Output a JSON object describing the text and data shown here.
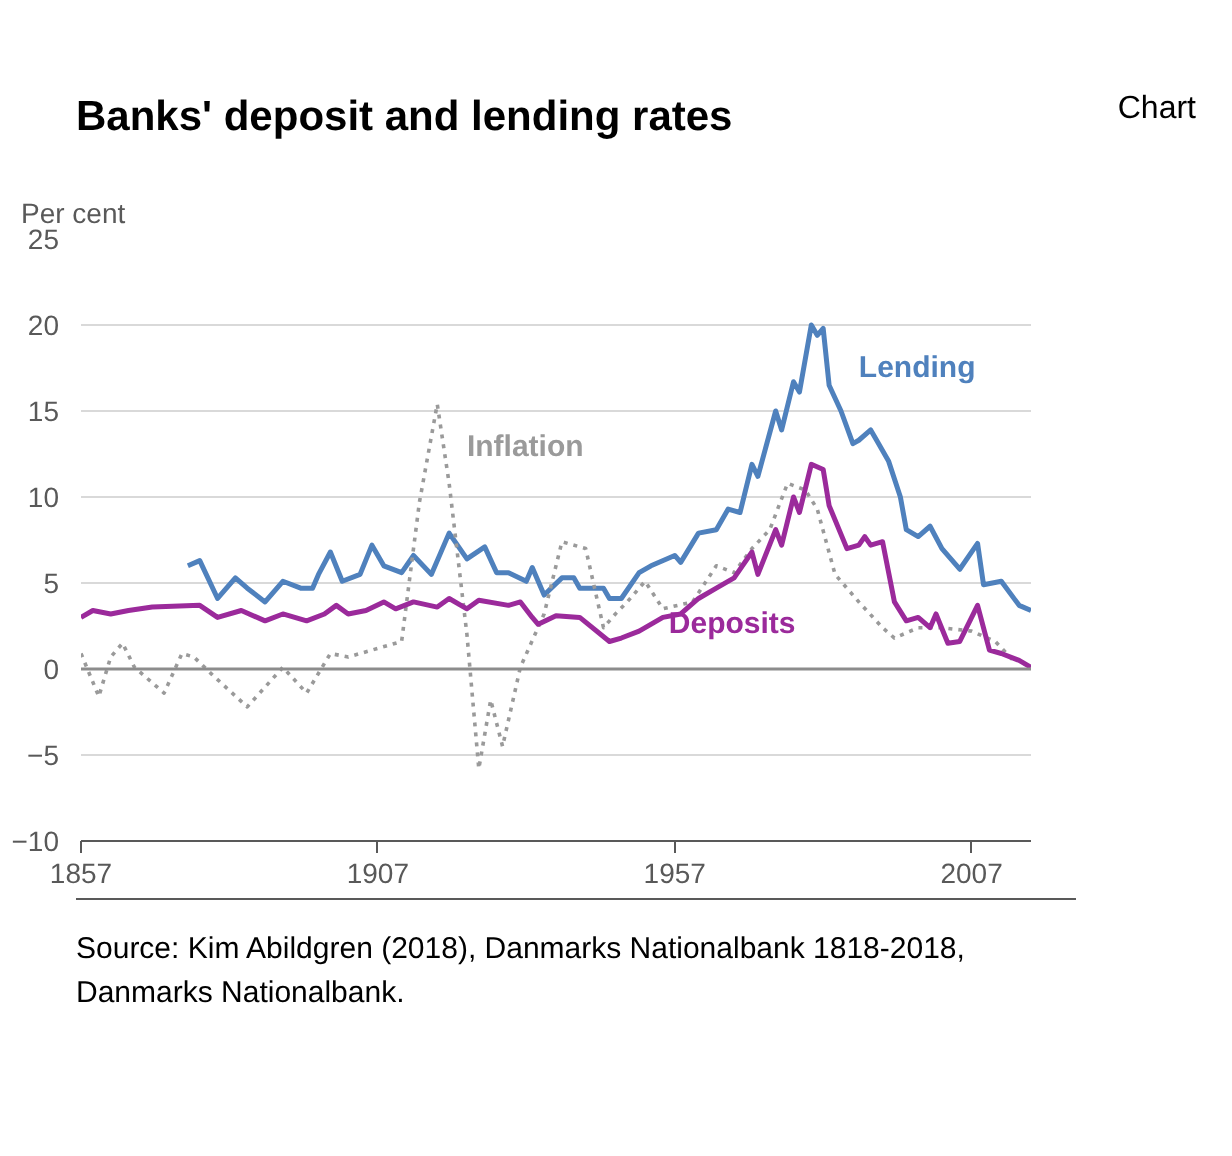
{
  "chart_data": {
    "type": "line",
    "title": "Banks' deposit and lending rates",
    "ylabel": "Per cent",
    "annotations": [
      "Chart",
      "Source:  Kim Abildgren (2018), Danmarks Nationalbank 1818-2018, Danmarks Nationalbank."
    ],
    "xlim": [
      1857,
      2017
    ],
    "xticks": [
      1857,
      1907,
      1957,
      2007
    ],
    "ylim": [
      -10,
      25
    ],
    "yticks": [
      -10,
      -5,
      0,
      5,
      10,
      15,
      20,
      25
    ],
    "grid": "y",
    "marker": "none",
    "series": [
      {
        "name": "Lending",
        "color": "#4f81bd",
        "line_style": "solid",
        "x": [
          1875,
          1877,
          1880,
          1883,
          1885,
          1888,
          1891,
          1894,
          1896,
          1897,
          1899,
          1901,
          1904,
          1906,
          1908,
          1911,
          1913,
          1916,
          1919,
          1922,
          1925,
          1927,
          1929,
          1932,
          1933,
          1935,
          1938,
          1940,
          1941,
          1945,
          1946,
          1948,
          1951,
          1953,
          1957,
          1958,
          1961,
          1964,
          1966,
          1968,
          1970,
          1971,
          1974,
          1975,
          1977,
          1978,
          1980,
          1981,
          1982,
          1983,
          1985,
          1987,
          1988,
          1990,
          1991,
          1993,
          1995,
          1996,
          1998,
          2000,
          2002,
          2005,
          2008,
          2009,
          2012,
          2015,
          2017
        ],
        "values": [
          6.0,
          6.3,
          4.1,
          5.3,
          4.7,
          3.9,
          5.1,
          4.7,
          4.7,
          5.5,
          6.8,
          5.1,
          5.5,
          7.2,
          6.0,
          5.6,
          6.6,
          5.5,
          7.9,
          6.4,
          7.1,
          5.6,
          5.6,
          5.1,
          5.9,
          4.3,
          5.3,
          5.3,
          4.7,
          4.7,
          4.1,
          4.1,
          5.6,
          6.0,
          6.6,
          6.2,
          7.9,
          8.1,
          9.3,
          9.1,
          11.9,
          11.2,
          15.0,
          13.9,
          16.7,
          16.1,
          20.0,
          19.4,
          19.8,
          16.5,
          15.0,
          13.1,
          13.3,
          13.9,
          13.3,
          12.1,
          10.0,
          8.1,
          7.7,
          8.3,
          7.0,
          5.8,
          7.3,
          4.9,
          5.1,
          3.7,
          3.4
        ]
      },
      {
        "name": "Inflation",
        "color": "#9a9a9a",
        "line_style": "dotted",
        "x": [
          1857,
          1860,
          1862,
          1864,
          1866,
          1871,
          1874,
          1876,
          1879,
          1885,
          1891,
          1895,
          1899,
          1902,
          1906,
          1911,
          1914,
          1917,
          1919,
          1922,
          1924,
          1926,
          1928,
          1931,
          1935,
          1938,
          1942,
          1945,
          1947,
          1949,
          1952,
          1955,
          1960,
          1964,
          1967,
          1970,
          1973,
          1976,
          1979,
          1981,
          1984,
          1988,
          1992,
          1994,
          1998,
          2002,
          2007,
          2011,
          2014
        ],
        "values": [
          0.9,
          -1.6,
          0.7,
          1.5,
          0.1,
          -1.4,
          0.9,
          0.7,
          -0.3,
          -2.2,
          0.1,
          -1.4,
          0.9,
          0.7,
          1.1,
          1.6,
          9.7,
          15.4,
          10.8,
          2.0,
          -5.8,
          -1.8,
          -4.5,
          0.1,
          3.2,
          7.4,
          7.0,
          2.4,
          3.2,
          3.9,
          5.1,
          3.5,
          3.9,
          6.0,
          5.6,
          7.0,
          8.1,
          10.8,
          10.4,
          9.3,
          5.5,
          3.9,
          2.4,
          1.8,
          2.4,
          2.4,
          2.2,
          1.6,
          0.5
        ]
      },
      {
        "name": "Deposits",
        "color": "#9b2a9b",
        "line_style": "solid",
        "x": [
          1857,
          1859,
          1862,
          1865,
          1869,
          1877,
          1880,
          1884,
          1888,
          1891,
          1895,
          1898,
          1900,
          1902,
          1905,
          1908,
          1910,
          1913,
          1917,
          1919,
          1922,
          1924,
          1929,
          1931,
          1933,
          1934,
          1937,
          1941,
          1946,
          1948,
          1951,
          1955,
          1958,
          1961,
          1964,
          1967,
          1970,
          1971,
          1974,
          1975,
          1977,
          1978,
          1980,
          1982,
          1983,
          1986,
          1988,
          1989,
          1990,
          1992,
          1994,
          1996,
          1998,
          2000,
          2001,
          2003,
          2005,
          2008,
          2010,
          2012,
          2015,
          2017
        ],
        "values": [
          3.0,
          3.4,
          3.2,
          3.4,
          3.6,
          3.7,
          3.0,
          3.4,
          2.8,
          3.2,
          2.8,
          3.2,
          3.7,
          3.2,
          3.4,
          3.9,
          3.5,
          3.9,
          3.6,
          4.1,
          3.5,
          4.0,
          3.7,
          3.9,
          3.0,
          2.6,
          3.1,
          3.0,
          1.6,
          1.8,
          2.2,
          3.0,
          3.2,
          4.1,
          4.7,
          5.3,
          6.8,
          5.5,
          8.1,
          7.2,
          10.0,
          9.1,
          11.9,
          11.6,
          9.5,
          7.0,
          7.2,
          7.7,
          7.2,
          7.4,
          3.9,
          2.8,
          3.0,
          2.4,
          3.2,
          1.5,
          1.6,
          3.7,
          1.1,
          0.9,
          0.5,
          0.1
        ]
      }
    ]
  }
}
